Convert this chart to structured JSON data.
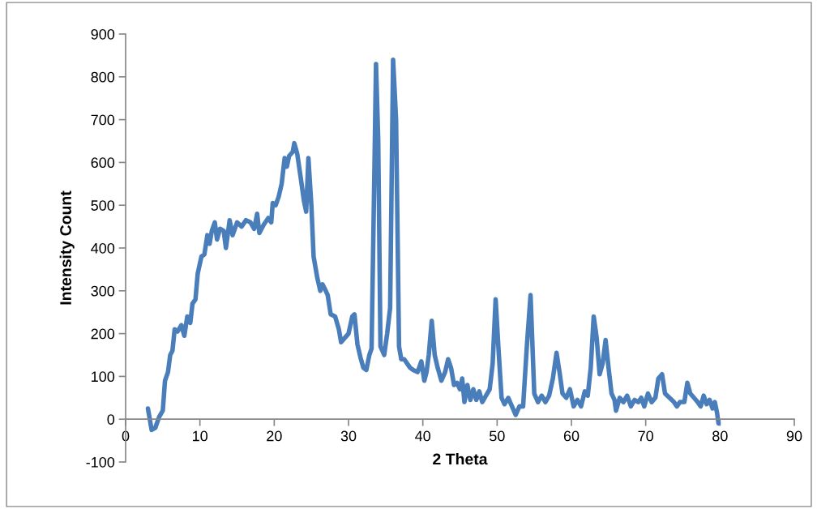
{
  "chart_data": {
    "type": "line",
    "xlabel": "2 Theta",
    "ylabel": "Intensity Count",
    "xlim": [
      0,
      90
    ],
    "xticks": [
      0,
      10,
      20,
      30,
      40,
      50,
      60,
      70,
      80,
      90
    ],
    "ylim": [
      -100,
      900
    ],
    "yticks": [
      -100,
      0,
      100,
      200,
      300,
      400,
      500,
      600,
      700,
      800,
      900
    ],
    "grid": false,
    "legend": false,
    "marker": "none",
    "line_style": "solid",
    "series": [
      {
        "color": "#4a7ebb",
        "x": [
          3.0,
          3.2,
          3.5,
          4,
          4.5,
          5,
          5.3,
          5.7,
          6,
          6.3,
          6.6,
          7,
          7.5,
          7.9,
          8.3,
          8.7,
          9,
          9.4,
          9.7,
          10.2,
          10.6,
          11,
          11.3,
          11.6,
          12,
          12.3,
          12.7,
          13.2,
          13.5,
          14,
          14.4,
          15,
          15.6,
          16.2,
          16.8,
          17.3,
          17.7,
          18,
          18.6,
          19.2,
          19.6,
          19.8,
          20.2,
          20.6,
          21,
          21.4,
          21.7,
          22,
          22.5,
          22.7,
          23.1,
          23.6,
          24,
          24.3,
          24.6,
          25,
          25.3,
          25.8,
          26.2,
          26.5,
          26.8,
          27.2,
          27.6,
          28.2,
          28.7,
          29,
          29.5,
          30,
          30.5,
          30.8,
          31.2,
          31.6,
          32,
          32.4,
          32.8,
          33.1,
          33.5,
          33.7,
          34.0,
          34.3,
          34.8,
          35.2,
          35.6,
          36.0,
          36.4,
          36.8,
          37.1,
          37.5,
          37.9,
          38.3,
          38.7,
          39.3,
          39.8,
          40.2,
          40.5,
          40.8,
          41.2,
          41.6,
          42,
          42.5,
          43,
          43.4,
          43.8,
          44.2,
          44.6,
          45,
          45.3,
          45.6,
          46,
          46.4,
          46.8,
          47.2,
          47.6,
          48,
          48.5,
          49,
          49.4,
          49.8,
          50.2,
          50.6,
          51,
          51.5,
          52,
          52.5,
          53,
          53.5,
          54,
          54.5,
          55,
          55.5,
          56,
          56.5,
          57,
          57.5,
          58,
          58.4,
          58.8,
          59.3,
          59.8,
          60.3,
          60.8,
          61.3,
          61.8,
          62.2,
          62.6,
          63,
          63.4,
          63.8,
          64.2,
          64.6,
          65,
          65.4,
          65.8,
          66,
          66.5,
          67,
          67.5,
          68,
          68.5,
          69,
          69.4,
          69.8,
          70.3,
          70.8,
          71.3,
          71.7,
          72.2,
          72.6,
          73.2,
          73.8,
          74.2,
          74.6,
          75.2,
          75.6,
          76,
          76.5,
          77,
          77.4,
          77.8,
          78.2,
          78.6,
          79,
          79.3,
          79.6,
          79.8
        ],
        "values": [
          25,
          5,
          -25,
          -20,
          5,
          20,
          90,
          110,
          150,
          160,
          210,
          205,
          220,
          195,
          240,
          225,
          270,
          280,
          340,
          380,
          385,
          430,
          410,
          440,
          460,
          420,
          445,
          440,
          400,
          465,
          430,
          460,
          450,
          465,
          460,
          445,
          480,
          435,
          455,
          470,
          460,
          505,
          500,
          520,
          550,
          610,
          590,
          615,
          625,
          645,
          620,
          560,
          510,
          485,
          610,
          500,
          380,
          330,
          300,
          315,
          305,
          290,
          245,
          240,
          210,
          180,
          190,
          200,
          240,
          245,
          175,
          145,
          120,
          115,
          150,
          165,
          600,
          830,
          650,
          170,
          150,
          200,
          260,
          840,
          700,
          170,
          140,
          140,
          130,
          120,
          115,
          110,
          135,
          90,
          110,
          150,
          230,
          150,
          120,
          90,
          110,
          140,
          120,
          80,
          85,
          70,
          95,
          40,
          80,
          45,
          70,
          45,
          65,
          40,
          55,
          70,
          130,
          280,
          160,
          50,
          35,
          50,
          30,
          10,
          30,
          30,
          170,
          290,
          60,
          40,
          55,
          40,
          55,
          95,
          155,
          110,
          60,
          50,
          70,
          30,
          45,
          30,
          65,
          55,
          120,
          240,
          190,
          105,
          130,
          185,
          120,
          60,
          45,
          20,
          50,
          40,
          55,
          30,
          45,
          40,
          50,
          30,
          60,
          40,
          50,
          95,
          105,
          60,
          50,
          40,
          30,
          40,
          40,
          85,
          60,
          50,
          40,
          30,
          55,
          35,
          45,
          25,
          40,
          15,
          -10
        ]
      }
    ]
  }
}
